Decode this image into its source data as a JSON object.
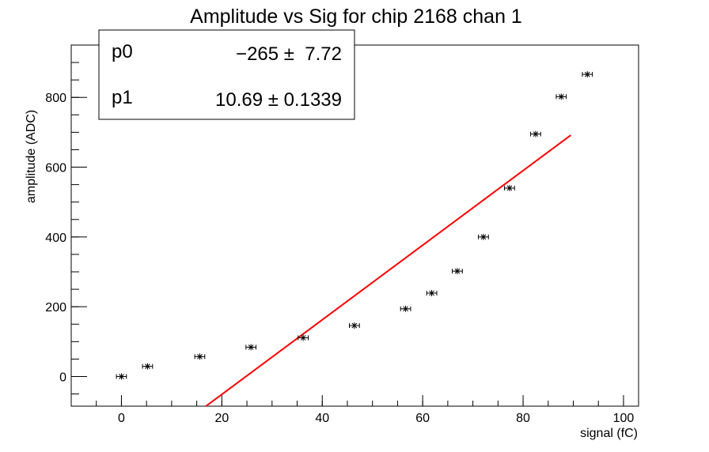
{
  "chart_data": {
    "type": "scatter",
    "title": "Amplitude vs Sig for chip 2168 chan 1",
    "xlabel": "signal (fC)",
    "ylabel": "amplitude (ADC)",
    "xlim": [
      -10,
      103
    ],
    "ylim": [
      -85,
      950
    ],
    "xticks": [
      0,
      20,
      40,
      60,
      80,
      100
    ],
    "yticks": [
      0,
      200,
      400,
      600,
      800
    ],
    "x_minor_step": 5,
    "y_minor_step": 50,
    "grid": false,
    "legend": "none",
    "marker": "star",
    "series": [
      {
        "x": [
          0,
          5.2,
          15.6,
          25.8,
          36.2,
          46.4,
          56.6,
          61.8,
          66.9,
          72.1,
          77.3,
          82.5,
          87.6,
          92.8
        ],
        "y": [
          0,
          29,
          57,
          84,
          111,
          146,
          194,
          239,
          302,
          400,
          540,
          695,
          802,
          866
        ],
        "xerr": [
          1,
          1,
          1,
          1,
          1,
          1,
          1,
          1,
          1,
          1,
          1,
          1,
          1,
          1
        ]
      }
    ],
    "fit": {
      "color": "#ff0000",
      "x_range": [
        16.8,
        89.5
      ],
      "p0": -265,
      "p1": 10.69
    },
    "stats_box": {
      "rows": [
        {
          "name": "p0",
          "value": "−265 ±  7.72"
        },
        {
          "name": "p1",
          "value": "10.69 ± 0.1339"
        }
      ]
    }
  }
}
